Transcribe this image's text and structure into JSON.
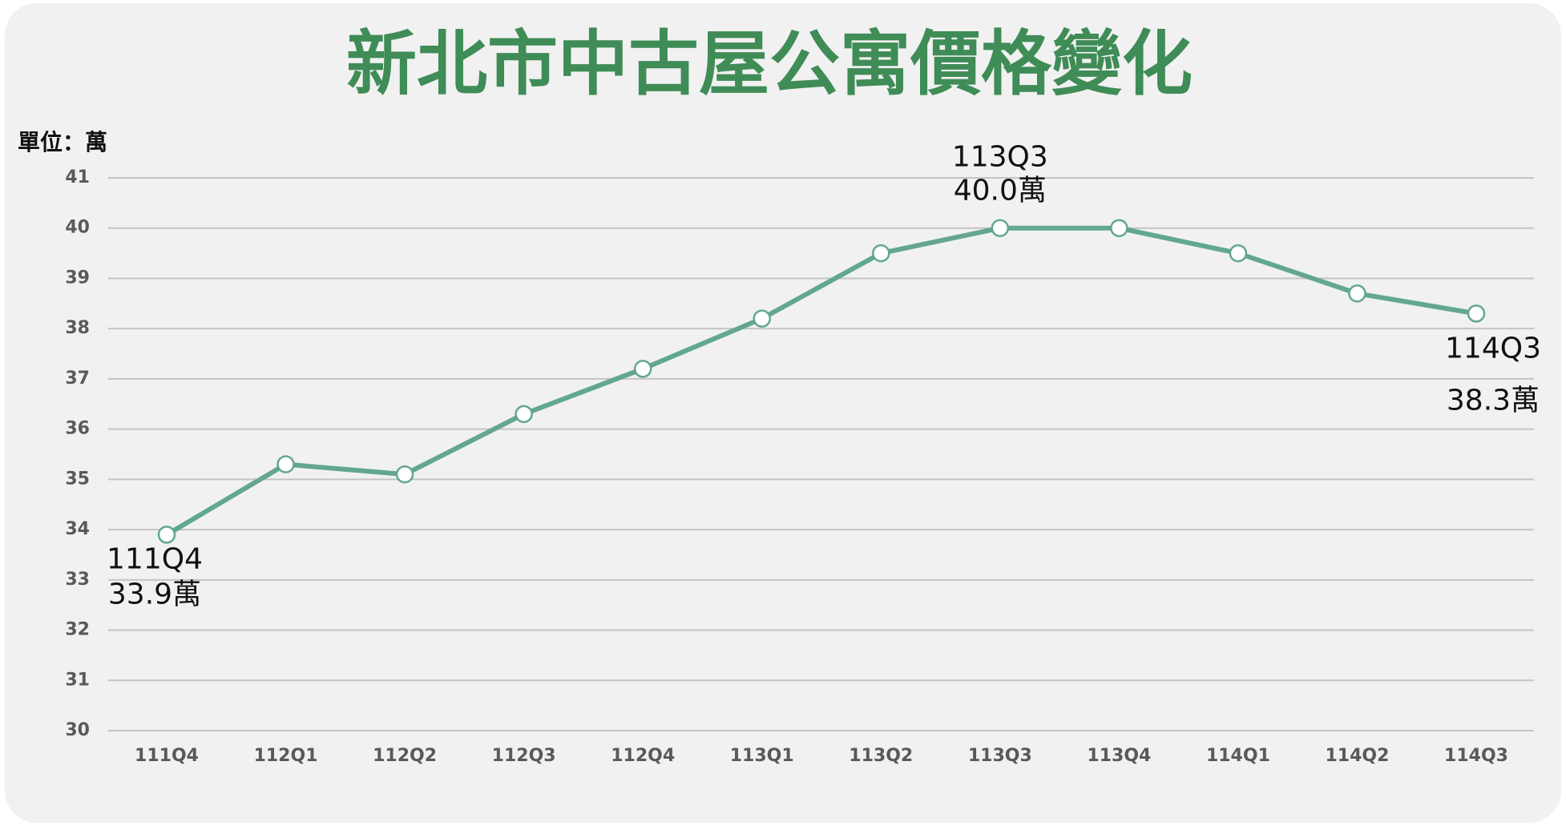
{
  "chart_data": {
    "type": "line",
    "title": "新北市中古屋公寓價格變化",
    "y_label": "單位：萬",
    "categories": [
      "111Q4",
      "112Q1",
      "112Q2",
      "112Q3",
      "112Q4",
      "113Q1",
      "113Q2",
      "113Q3",
      "113Q4",
      "114Q1",
      "114Q2",
      "114Q3"
    ],
    "series": [
      {
        "color": "#62a78e",
        "values": [
          33.9,
          35.3,
          35.1,
          36.3,
          37.2,
          38.2,
          39.5,
          40.0,
          40.0,
          39.5,
          38.7,
          38.3
        ],
        "value_labels": [
          "33.9萬",
          null,
          null,
          null,
          null,
          null,
          null,
          "40.0萬",
          null,
          null,
          null,
          "38.3萬"
        ]
      }
    ],
    "ylim": [
      30,
      41
    ],
    "yticks": [
      30,
      31,
      32,
      33,
      34,
      35,
      36,
      37,
      38,
      39,
      40,
      41
    ],
    "grid": true
  }
}
